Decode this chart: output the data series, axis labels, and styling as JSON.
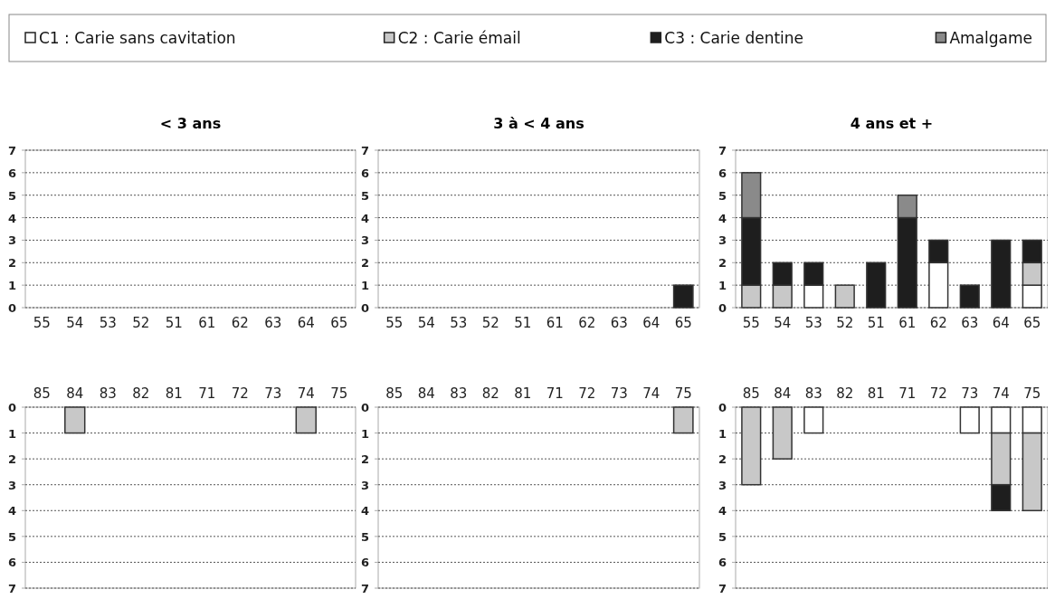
{
  "chart_data": [
    {
      "type": "bar",
      "title": "< 3 ans",
      "stacked": true,
      "legend": "top",
      "grid": "y",
      "categories": [
        "55",
        "54",
        "53",
        "52",
        "51",
        "61",
        "62",
        "63",
        "64",
        "65"
      ],
      "ylim": [
        0,
        7
      ],
      "yticks": [
        0,
        1,
        2,
        3,
        4,
        5,
        6,
        7
      ],
      "series": [
        {
          "name": "C1 : Carie sans cavitation",
          "color": "#ffffff",
          "values": [
            0,
            0,
            0,
            0,
            0,
            0,
            0,
            0,
            0,
            0
          ]
        },
        {
          "name": "C2 : Carie émail",
          "color": "#c8c8c8",
          "values": [
            0,
            0,
            0,
            0,
            0,
            0,
            0,
            0,
            0,
            0
          ]
        },
        {
          "name": "C3 : Carie dentine",
          "color": "#1e1e1e",
          "values": [
            0,
            0,
            0,
            0,
            0,
            0,
            0,
            0,
            0,
            0
          ]
        },
        {
          "name": "Amalgame",
          "color": "#8a8a8a",
          "values": [
            0,
            0,
            0,
            0,
            0,
            0,
            0,
            0,
            0,
            0
          ]
        }
      ]
    },
    {
      "type": "bar",
      "title": "3 à < 4 ans",
      "stacked": true,
      "grid": "y",
      "categories": [
        "55",
        "54",
        "53",
        "52",
        "51",
        "61",
        "62",
        "63",
        "64",
        "65"
      ],
      "ylim": [
        0,
        7
      ],
      "yticks": [
        0,
        1,
        2,
        3,
        4,
        5,
        6,
        7
      ],
      "series": [
        {
          "values": [
            0,
            0,
            0,
            0,
            0,
            0,
            0,
            0,
            0,
            0
          ]
        },
        {
          "values": [
            0,
            0,
            0,
            0,
            0,
            0,
            0,
            0,
            0,
            0
          ]
        },
        {
          "values": [
            0,
            0,
            0,
            0,
            0,
            0,
            0,
            0,
            0,
            1
          ]
        },
        {
          "values": [
            0,
            0,
            0,
            0,
            0,
            0,
            0,
            0,
            0,
            0
          ]
        }
      ]
    },
    {
      "type": "bar",
      "title": "4 ans et +",
      "stacked": true,
      "grid": "y",
      "categories": [
        "55",
        "54",
        "53",
        "52",
        "51",
        "61",
        "62",
        "63",
        "64",
        "65"
      ],
      "ylim": [
        0,
        7
      ],
      "yticks": [
        0,
        1,
        2,
        3,
        4,
        5,
        6,
        7
      ],
      "series": [
        {
          "values": [
            0,
            0,
            1,
            0,
            0,
            0,
            2,
            0,
            0,
            1
          ]
        },
        {
          "values": [
            1,
            1,
            0,
            1,
            0,
            0,
            0,
            0,
            0,
            1
          ]
        },
        {
          "values": [
            3,
            1,
            1,
            0,
            2,
            4,
            1,
            1,
            3,
            1
          ]
        },
        {
          "values": [
            2,
            0,
            0,
            0,
            0,
            1,
            0,
            0,
            0,
            0
          ]
        }
      ]
    },
    {
      "type": "bar",
      "stacked": true,
      "grid": "y",
      "categories": [
        "85",
        "84",
        "83",
        "82",
        "81",
        "71",
        "72",
        "73",
        "74",
        "75"
      ],
      "ylim": [
        7,
        0
      ],
      "yticks": [
        0,
        1,
        2,
        3,
        4,
        5,
        6,
        7
      ],
      "series": [
        {
          "values": [
            0,
            0,
            0,
            0,
            0,
            0,
            0,
            0,
            0,
            0
          ]
        },
        {
          "values": [
            0,
            1,
            0,
            0,
            0,
            0,
            0,
            0,
            1,
            0
          ]
        },
        {
          "values": [
            0,
            0,
            0,
            0,
            0,
            0,
            0,
            0,
            0,
            0
          ]
        },
        {
          "values": [
            0,
            0,
            0,
            0,
            0,
            0,
            0,
            0,
            0,
            0
          ]
        }
      ]
    },
    {
      "type": "bar",
      "stacked": true,
      "grid": "y",
      "categories": [
        "85",
        "84",
        "83",
        "82",
        "81",
        "71",
        "72",
        "73",
        "74",
        "75"
      ],
      "ylim": [
        7,
        0
      ],
      "yticks": [
        0,
        1,
        2,
        3,
        4,
        5,
        6,
        7
      ],
      "series": [
        {
          "values": [
            0,
            0,
            0,
            0,
            0,
            0,
            0,
            0,
            0,
            0
          ]
        },
        {
          "values": [
            0,
            0,
            0,
            0,
            0,
            0,
            0,
            0,
            0,
            1
          ]
        },
        {
          "values": [
            0,
            0,
            0,
            0,
            0,
            0,
            0,
            0,
            0,
            0
          ]
        },
        {
          "values": [
            0,
            0,
            0,
            0,
            0,
            0,
            0,
            0,
            0,
            0
          ]
        }
      ]
    },
    {
      "type": "bar",
      "stacked": true,
      "grid": "y",
      "categories": [
        "85",
        "84",
        "83",
        "82",
        "81",
        "71",
        "72",
        "73",
        "74",
        "75"
      ],
      "ylim": [
        7,
        0
      ],
      "yticks": [
        0,
        1,
        2,
        3,
        4,
        5,
        6,
        7
      ],
      "series": [
        {
          "values": [
            0,
            0,
            1,
            0,
            0,
            0,
            0,
            1,
            1,
            1
          ]
        },
        {
          "values": [
            3,
            2,
            0,
            0,
            0,
            0,
            0,
            0,
            2,
            3
          ]
        },
        {
          "values": [
            0,
            0,
            0,
            0,
            0,
            0,
            0,
            0,
            1,
            0
          ]
        },
        {
          "values": [
            0,
            0,
            0,
            0,
            0,
            0,
            0,
            0,
            0,
            0
          ]
        }
      ]
    }
  ]
}
